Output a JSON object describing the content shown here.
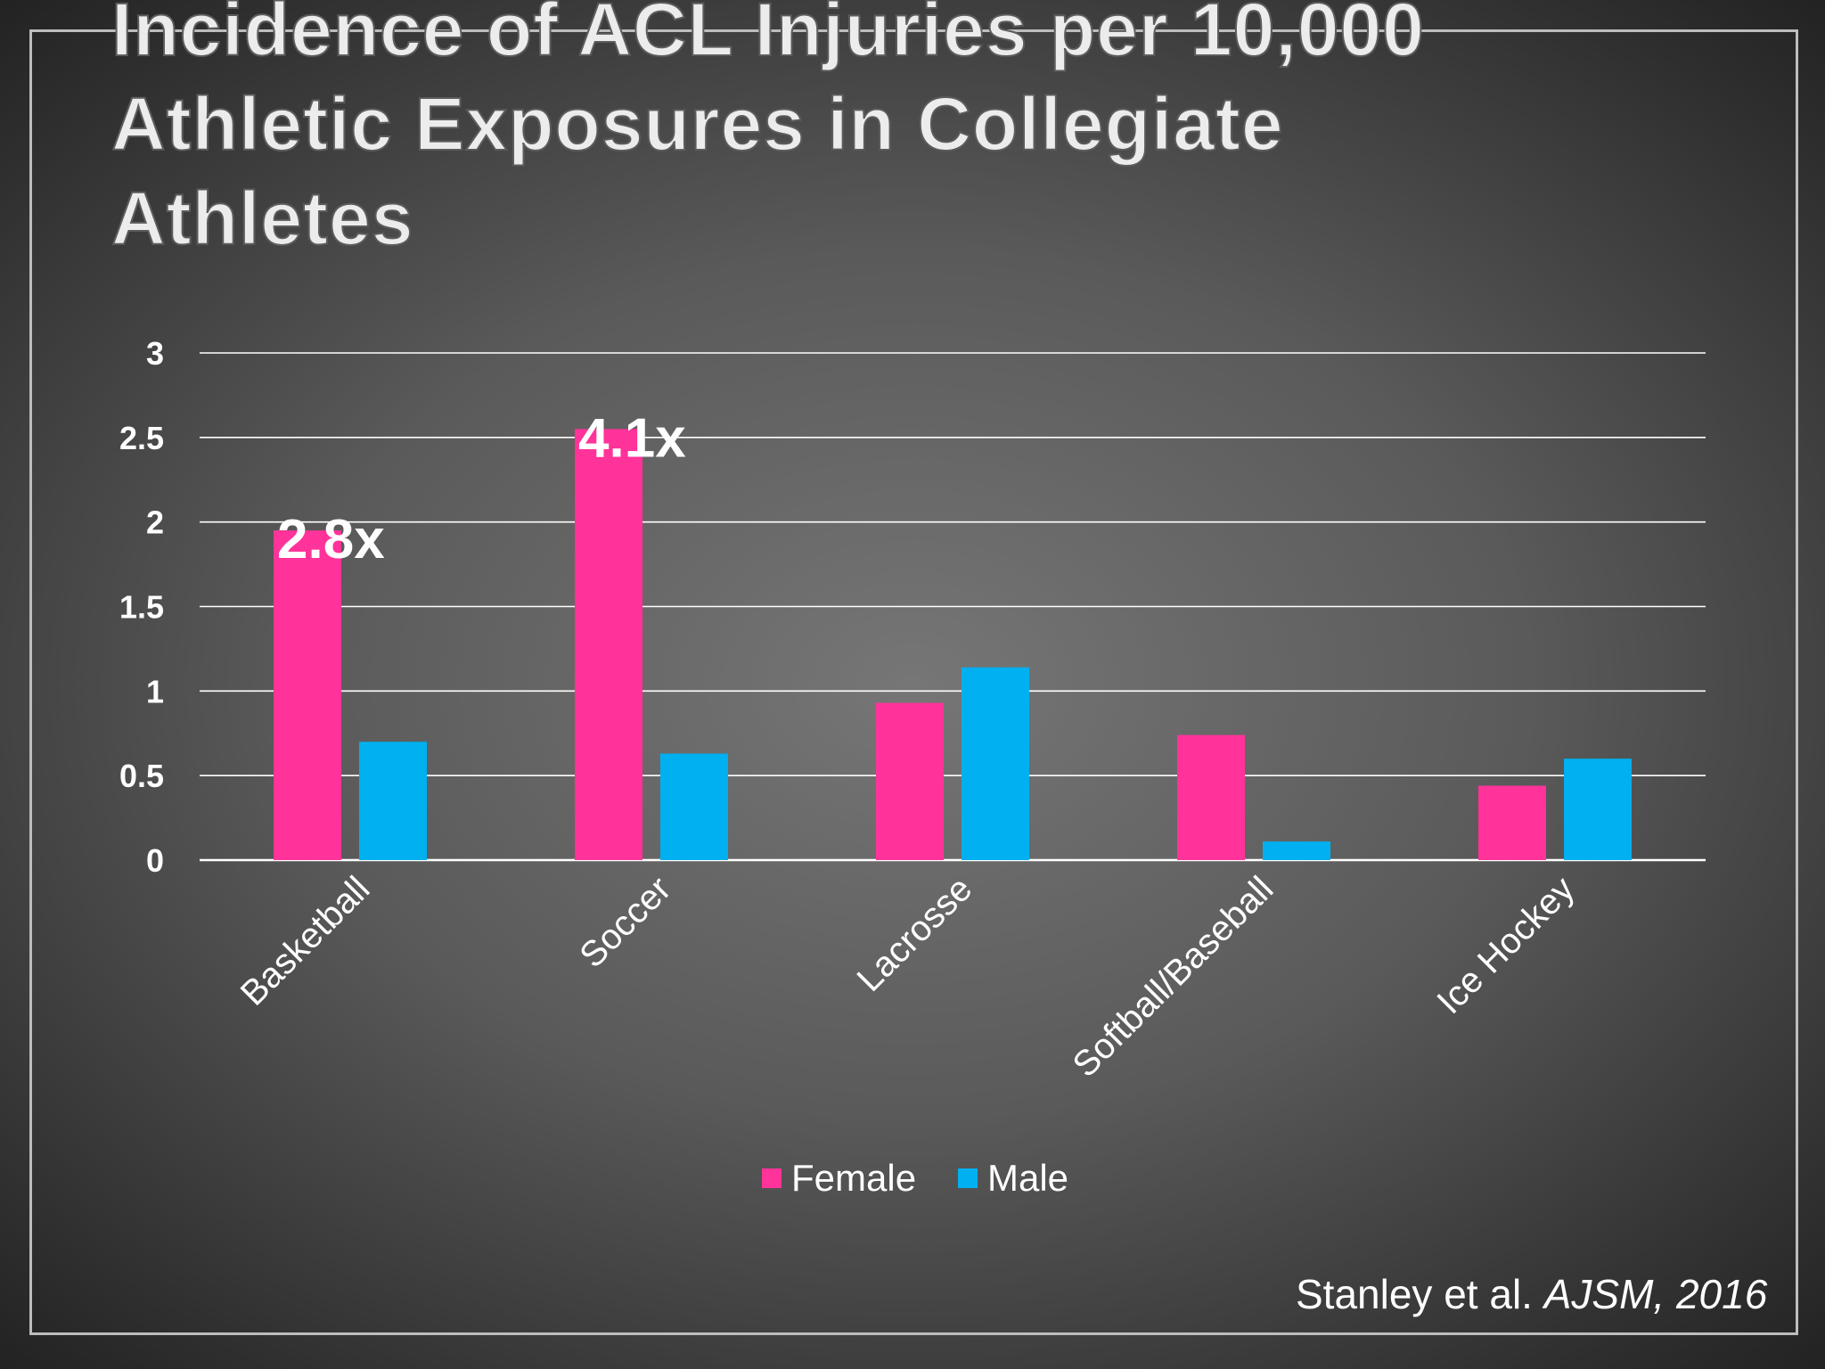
{
  "slide": {
    "title": "Incidence of ACL Injuries per 10,000 Athletic Exposures in Collegiate Athletes",
    "source_authors": "Stanley et al.",
    "source_journal": "AJSM, 2016"
  },
  "chart_data": {
    "type": "bar",
    "title": "",
    "xlabel": "",
    "ylabel": "",
    "categories": [
      "Basketball",
      "Soccer",
      "Lacrosse",
      "Softball/Baseball",
      "Ice Hockey"
    ],
    "series": [
      {
        "name": "Female",
        "color": "#ff3399",
        "values": [
          1.95,
          2.55,
          0.93,
          0.74,
          0.44
        ]
      },
      {
        "name": "Male",
        "color": "#00b0f0",
        "values": [
          0.7,
          0.63,
          1.14,
          0.11,
          0.6
        ]
      }
    ],
    "yticks": [
      "0",
      "0.5",
      "1",
      "1.5",
      "2",
      "2.5",
      "3"
    ],
    "ylim": [
      0,
      3
    ],
    "grid": true,
    "legend_position": "bottom",
    "annotations": [
      {
        "category": "Basketball",
        "series": "Female",
        "text": "2.8x"
      },
      {
        "category": "Soccer",
        "series": "Female",
        "text": "4.1x"
      }
    ]
  }
}
